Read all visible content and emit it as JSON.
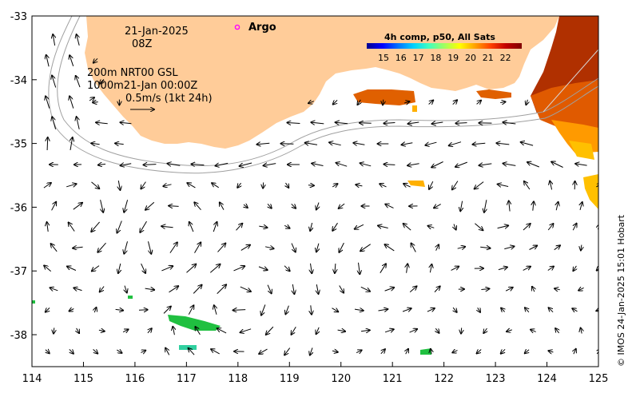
{
  "map": {
    "date_text": "21-Jan-2025",
    "time_text": "08Z",
    "argo_label": "Argo",
    "legend": {
      "line1": "200m  NRT00 GSL",
      "line2": "1000m21-Jan 00:00Z",
      "line3": "0.5m/s (1kt 24h)"
    },
    "colorbar": {
      "title": "4h comp, p50, All Sats",
      "ticks": [
        "15",
        "16",
        "17",
        "18",
        "19",
        "20",
        "21",
        "22"
      ],
      "colors": [
        "#00008f",
        "#0000ff",
        "#0070ff",
        "#00d0ff",
        "#40ffbf",
        "#a0ff60",
        "#ffff00",
        "#ffa000",
        "#ff4000",
        "#c00000",
        "#800000"
      ]
    },
    "credit": "© IMOS 24-Jan-2025 15:01 Hobart",
    "x_ticks": [
      "114",
      "115",
      "116",
      "117",
      "118",
      "119",
      "120",
      "121",
      "122",
      "123",
      "124",
      "125"
    ],
    "y_ticks": [
      "-33",
      "-34",
      "-35",
      "-36",
      "-37",
      "-38"
    ],
    "colors": {
      "land": "#ffcc99",
      "arrow": "#000000",
      "isobath": "#a0a0a0",
      "argo_marker": "#ff00ff"
    }
  }
}
